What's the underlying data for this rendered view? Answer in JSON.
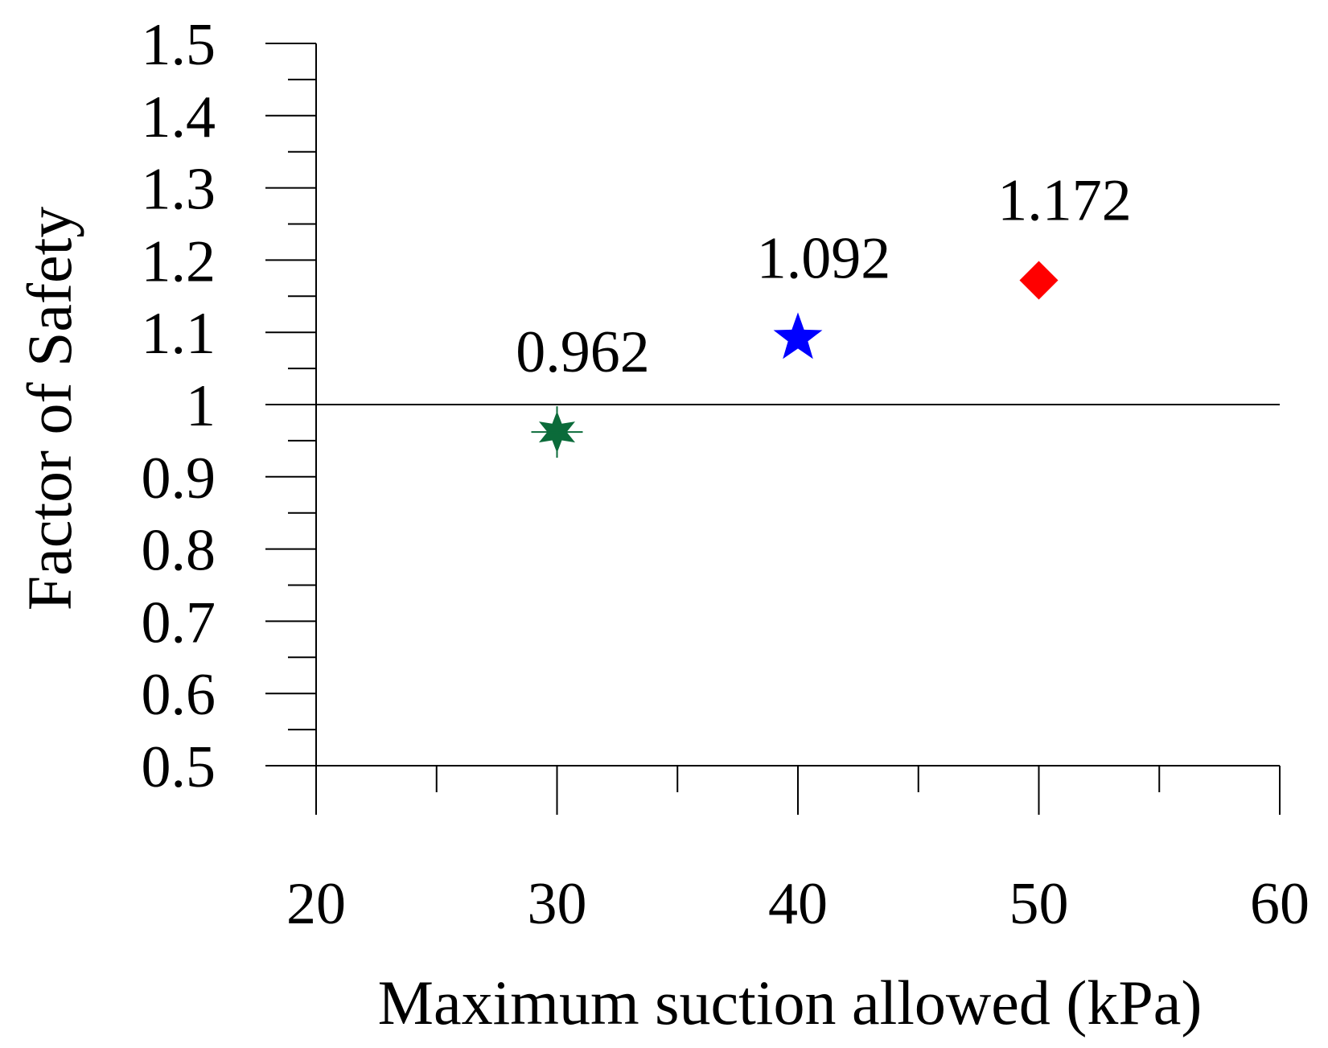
{
  "chart_data": {
    "type": "scatter",
    "title": "",
    "xlabel": "Maximum suction allowed (kPa)",
    "ylabel": "Factor of Safety",
    "xlim": [
      20,
      60
    ],
    "ylim": [
      0.5,
      1.5
    ],
    "xticks": [
      "20",
      "30",
      "40",
      "50",
      "60"
    ],
    "yticks": [
      "0.5",
      "0.6",
      "0.7",
      "0.8",
      "0.9",
      "1",
      "1.1",
      "1.2",
      "1.3",
      "1.4",
      "1.5"
    ],
    "reference_line": {
      "y": 1
    },
    "grid": false,
    "legend": "none",
    "points": [
      {
        "x": 30,
        "y": 0.962,
        "label": "0.962",
        "marker": "asterisk-star-icon",
        "color": "#0b6b3a"
      },
      {
        "x": 40,
        "y": 1.092,
        "label": "1.092",
        "marker": "star-icon",
        "color": "#0000ff"
      },
      {
        "x": 50,
        "y": 1.172,
        "label": "1.172",
        "marker": "diamond-icon",
        "color": "#ff0000"
      }
    ]
  }
}
